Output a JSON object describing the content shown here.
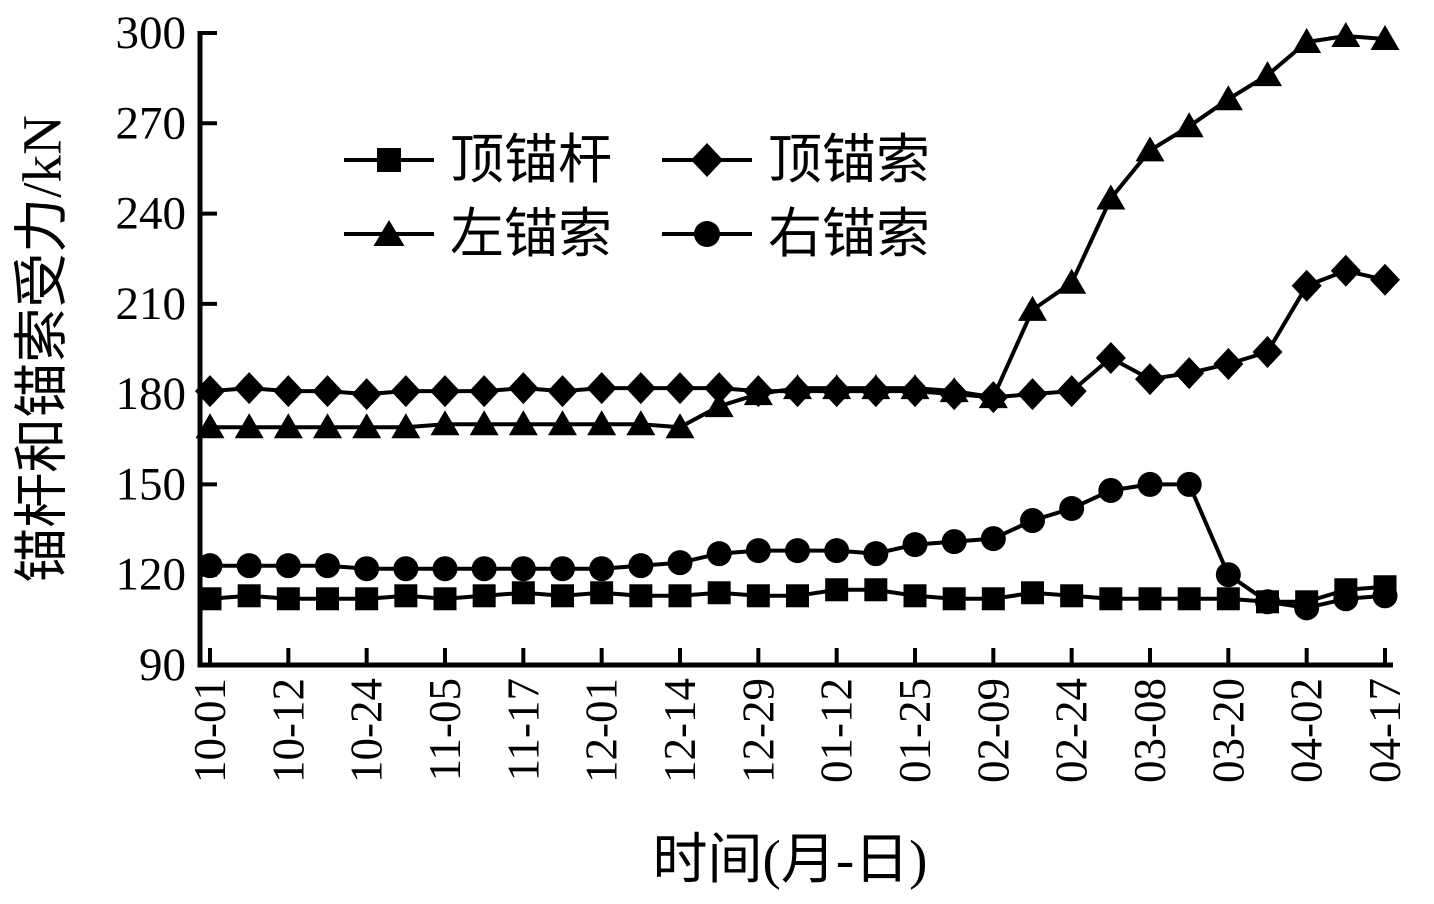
{
  "chart_data": {
    "type": "line",
    "title": "",
    "xlabel": "时间(月-日)",
    "ylabel": "锚杆和锚索受力/kN",
    "ylim": [
      90,
      300
    ],
    "yticks": [
      90,
      120,
      150,
      180,
      210,
      240,
      270,
      300
    ],
    "x_tick_labels": [
      "10-01",
      "10-12",
      "10-24",
      "11-05",
      "11-17",
      "12-01",
      "12-14",
      "12-29",
      "01-12",
      "01-25",
      "02-09",
      "02-24",
      "03-08",
      "03-20",
      "04-02",
      "04-17"
    ],
    "points_per_tick_interval": 2,
    "n_points": 31,
    "grid": false,
    "legend_position": "upper-left-inside",
    "line_color": "#000000",
    "background_color": "#ffffff",
    "series": [
      {
        "name": "顶锚杆",
        "marker": "square",
        "values": [
          112,
          113,
          112,
          112,
          112,
          113,
          112,
          113,
          114,
          113,
          114,
          113,
          113,
          114,
          113,
          113,
          115,
          115,
          113,
          112,
          112,
          114,
          113,
          112,
          112,
          112,
          112,
          111,
          111,
          115,
          116
        ]
      },
      {
        "name": "顶锚索",
        "marker": "diamond",
        "values": [
          181,
          182,
          181,
          181,
          180,
          181,
          181,
          181,
          182,
          181,
          182,
          182,
          182,
          182,
          181,
          181,
          181,
          181,
          181,
          180,
          179,
          180,
          181,
          192,
          185,
          187,
          190,
          194,
          216,
          221,
          218
        ]
      },
      {
        "name": "左锚索",
        "marker": "triangle",
        "values": [
          169,
          169,
          169,
          169,
          169,
          169,
          170,
          170,
          170,
          170,
          170,
          170,
          169,
          176,
          180,
          182,
          182,
          182,
          182,
          181,
          179,
          208,
          217,
          245,
          261,
          269,
          278,
          286,
          297,
          299,
          298
        ]
      },
      {
        "name": "右锚索",
        "marker": "circle",
        "values": [
          123,
          123,
          123,
          123,
          122,
          122,
          122,
          122,
          122,
          122,
          122,
          123,
          124,
          127,
          128,
          128,
          128,
          127,
          130,
          131,
          132,
          138,
          142,
          148,
          150,
          150,
          120,
          111,
          109,
          112,
          113
        ]
      }
    ]
  }
}
